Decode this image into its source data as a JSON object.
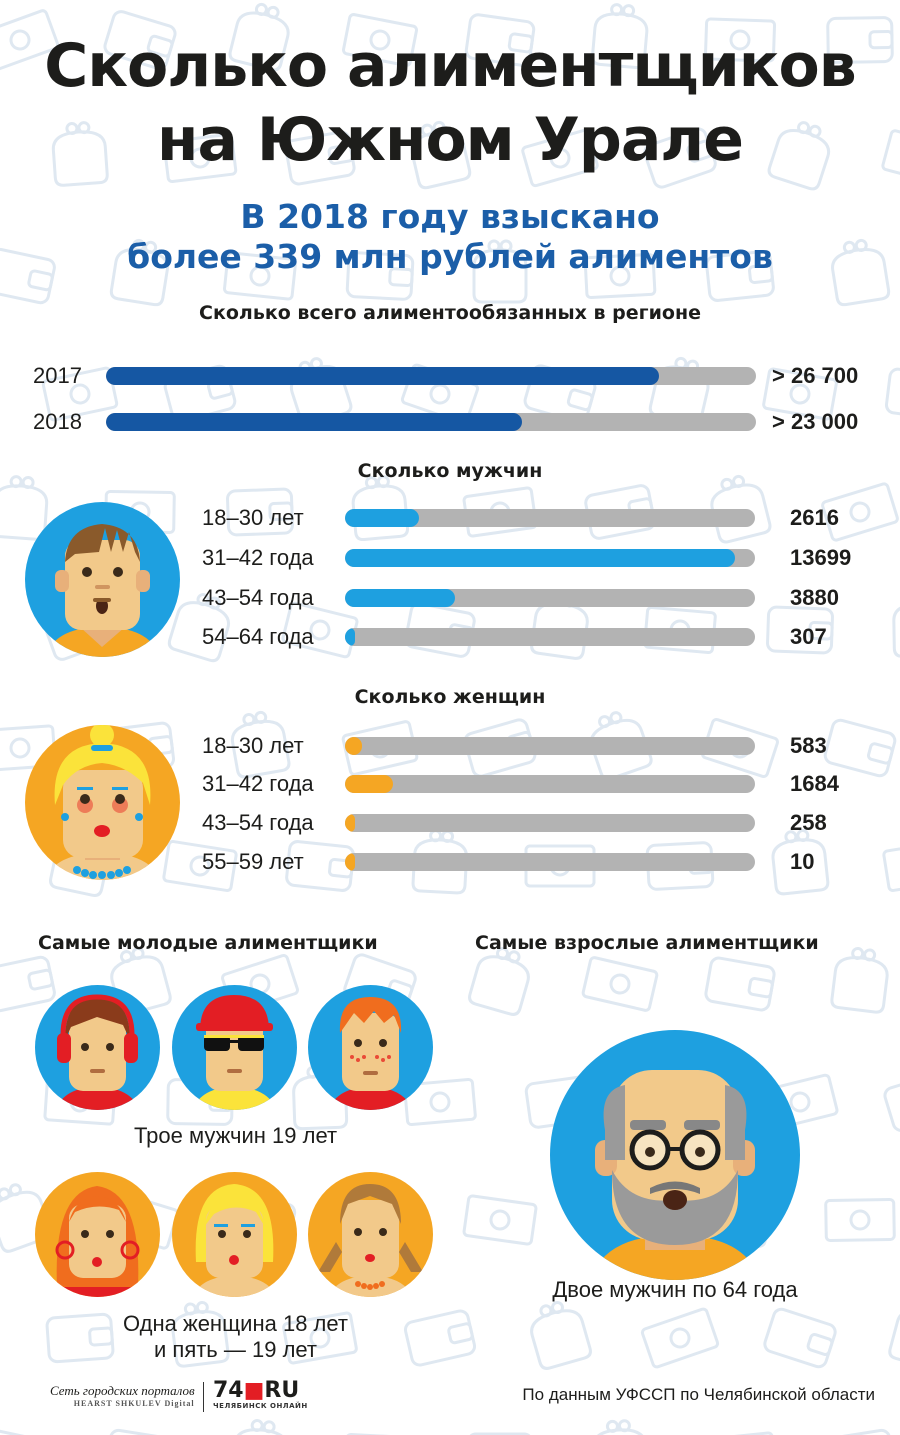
{
  "title": {
    "line1": "Сколько алиментщиков",
    "line2": "на Южном Урале"
  },
  "subtitle": {
    "line1": "В 2018 году взыскано",
    "line2": "более 339 млн рублей алиментов"
  },
  "colors": {
    "dark_blue": "#1557a3",
    "light_blue": "#1ea0e0",
    "orange": "#f5a623",
    "track": "#b3b3b3",
    "subtitle": "#1b5ea8"
  },
  "chart_data": [
    {
      "type": "bar",
      "orientation": "horizontal",
      "title": "Сколько всего алиментообязанных в регионе",
      "categories": [
        "2017",
        "2018"
      ],
      "values": [
        26700,
        23000
      ],
      "value_labels": [
        "> 26 700",
        "> 23 000"
      ],
      "fill_fraction": [
        0.85,
        0.64
      ],
      "color": "#1557a3"
    },
    {
      "type": "bar",
      "orientation": "horizontal",
      "title": "Сколько мужчин",
      "categories": [
        "18–30 лет",
        "31–42 года",
        "43–54 года",
        "54–64 года"
      ],
      "values": [
        2616,
        13699,
        3880,
        307
      ],
      "value_labels": [
        "2616",
        "13699",
        "3880",
        "307"
      ],
      "xlim": [
        0,
        14400
      ],
      "color": "#1ea0e0"
    },
    {
      "type": "bar",
      "orientation": "horizontal",
      "title": "Сколько женщин",
      "categories": [
        "18–30 лет",
        "31–42 года",
        "43–54 года",
        "55–59 лет"
      ],
      "values": [
        583,
        1684,
        258,
        10
      ],
      "value_labels": [
        "583",
        "1684",
        "258",
        "10"
      ],
      "xlim": [
        0,
        14400
      ],
      "color": "#f5a623"
    }
  ],
  "youngest": {
    "heading": "Самые молодые алиментщики",
    "men_caption": "Трое мужчин 19 лет",
    "women_caption_line1": "Одна женщина 18 лет",
    "women_caption_line2": "и пять — 19 лет"
  },
  "oldest": {
    "heading": "Самые взрослые алиментщики",
    "caption": "Двое мужчин по 64 года"
  },
  "footer": {
    "logo1_main": "Сеть городских порталов",
    "logo1_sub": "HEARST SHKULEV Digital",
    "logo2_num": "74",
    "logo2_dot": "■",
    "logo2_ru": "RU",
    "logo2_sub": "ЧЕЛЯБИНСК ОНЛАЙН",
    "source": "По данным УФССП по Челябинской области"
  }
}
